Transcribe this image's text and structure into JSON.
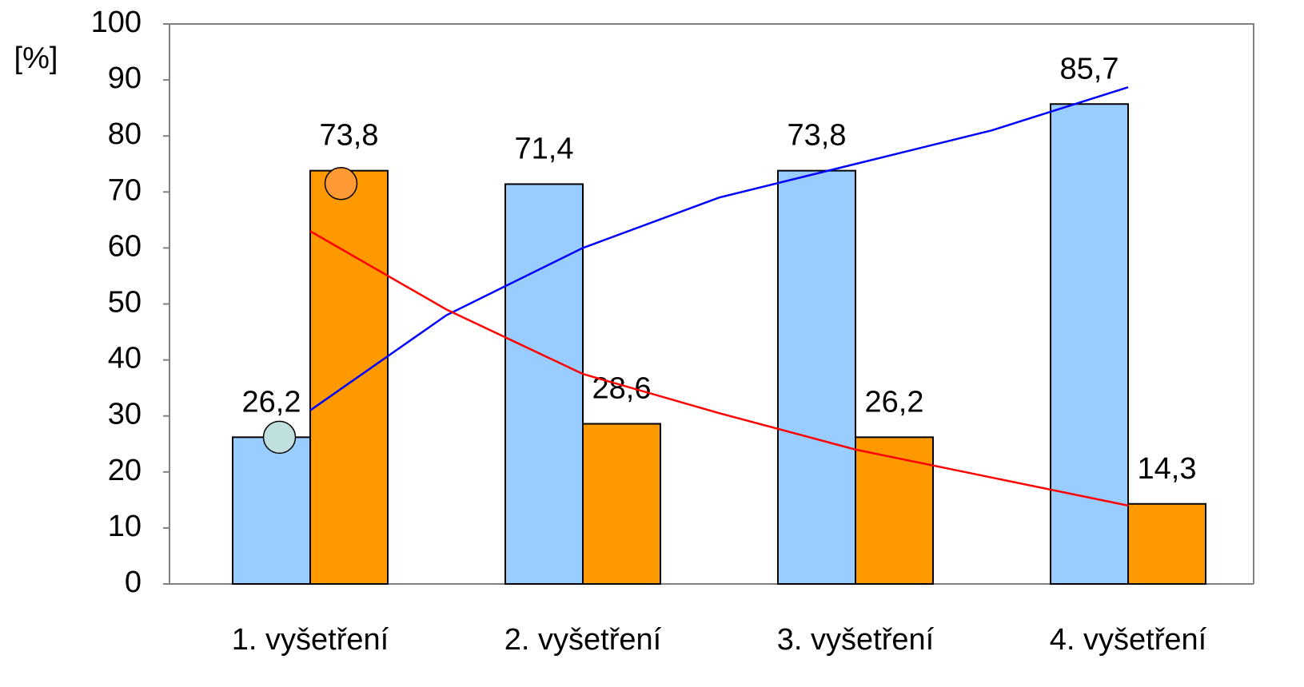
{
  "chart_data": {
    "type": "bar",
    "y_label": "[%]",
    "categories": [
      "1. vyšetření",
      "2. vyšetření",
      "3. vyšetření",
      "4.  vyšetření"
    ],
    "series": [
      {
        "color": "#99ccff",
        "values": [
          26.2,
          71.4,
          73.8,
          85.7
        ],
        "value_labels": [
          "26,2",
          "71,4",
          "73,8",
          "85,7"
        ]
      },
      {
        "color": "#ff9900",
        "values": [
          73.8,
          28.6,
          26.2,
          14.3
        ],
        "value_labels": [
          "73,8",
          "28,6",
          "26,2",
          "14,3"
        ]
      }
    ],
    "trend_lines": [
      {
        "color": "#0000ff",
        "x": [
          0,
          0.5,
          1,
          1.5,
          2,
          2.5,
          3
        ],
        "values": [
          31,
          48,
          60,
          69,
          75,
          81,
          88.7
        ]
      },
      {
        "color": "#ff0000",
        "x": [
          0,
          0.5,
          1,
          1.5,
          2,
          2.5,
          3
        ],
        "values": [
          63,
          49,
          37.5,
          30.5,
          24,
          19,
          14
        ]
      }
    ],
    "markers": [
      {
        "color": "#c0e0e0",
        "value": 26.2
      },
      {
        "color": "#ff9933",
        "value": 71.5
      }
    ],
    "ylim": [
      0,
      100
    ],
    "yticks": [
      0,
      10,
      20,
      30,
      40,
      50,
      60,
      70,
      80,
      90,
      100
    ]
  }
}
